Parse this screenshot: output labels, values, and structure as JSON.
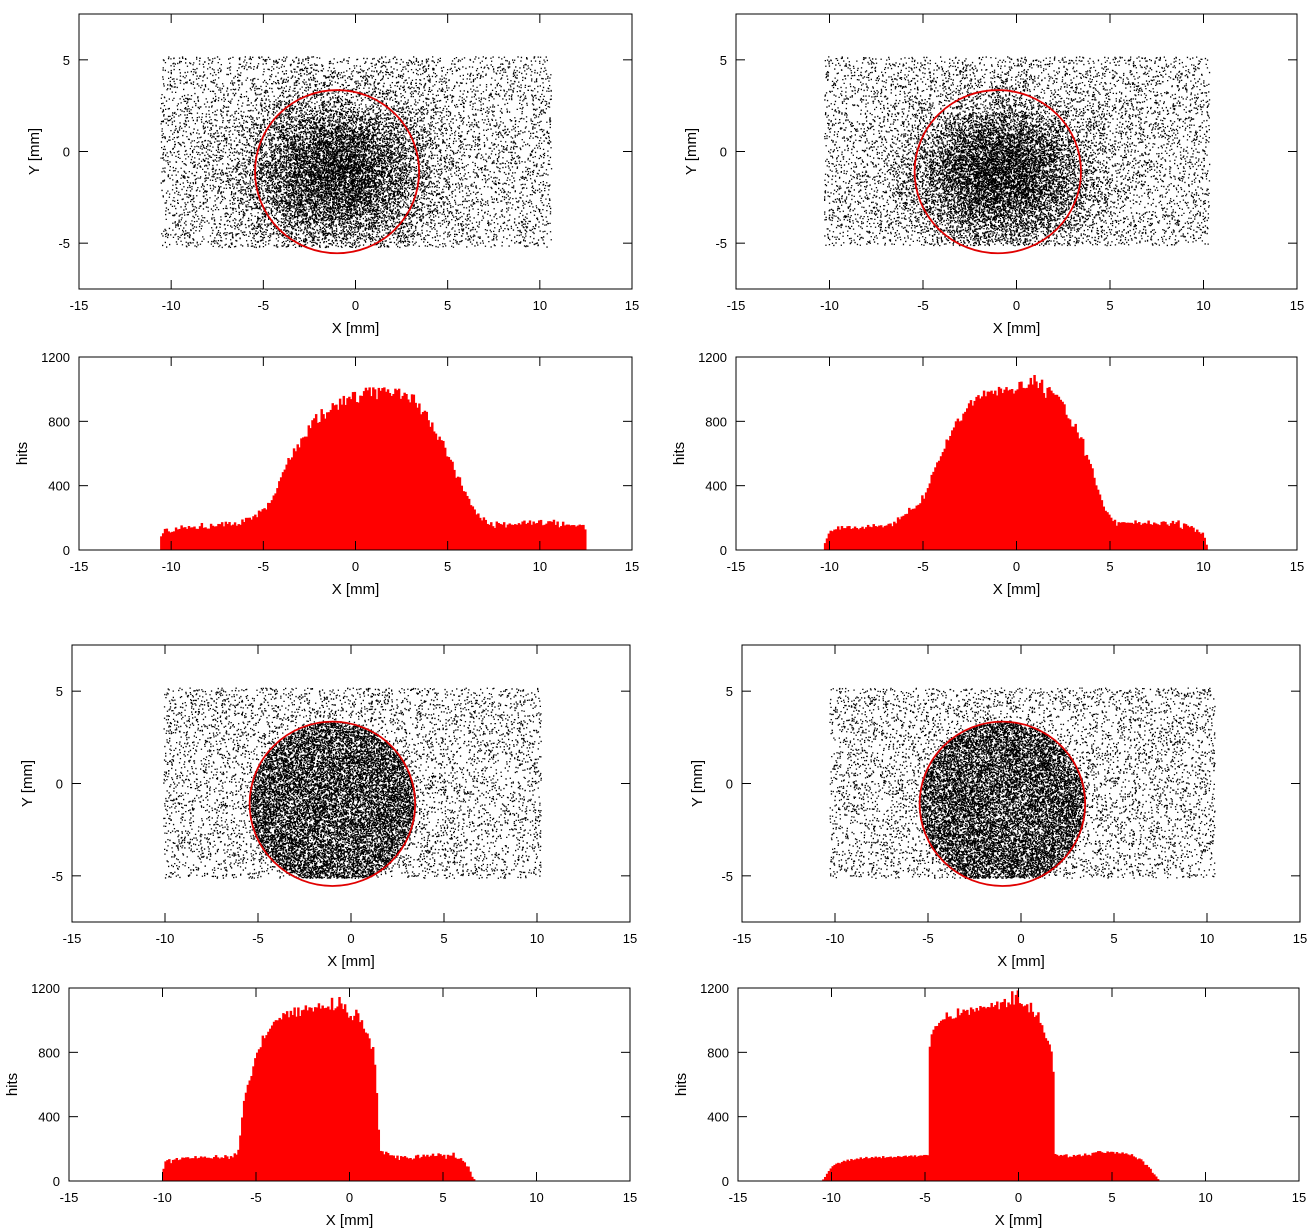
{
  "chart_data": [
    {
      "id": "scatter_top_left",
      "type": "scatter",
      "xlabel": "X [mm]",
      "ylabel": "Y [mm]",
      "xlim": [
        -15,
        15
      ],
      "ylim": [
        -7.5,
        7.5
      ],
      "xticks": [
        -15,
        -10,
        -5,
        0,
        5,
        10,
        15
      ],
      "yticks": [
        -5,
        0,
        5
      ],
      "grid": false,
      "point_color": "#000000",
      "uniform_region": {
        "x": [
          -10.6,
          10.6
        ],
        "y": [
          -5.2,
          5.2
        ],
        "points": 6000
      },
      "beam": {
        "cx": -1.0,
        "cy": -1.1,
        "rx": 5.3,
        "ry": 4.2,
        "points": 9000,
        "shape": "gaussian"
      },
      "circle": {
        "cx": -1.0,
        "cy": -1.1,
        "r": 4.45,
        "color": "#e00000"
      }
    },
    {
      "id": "hist_top_left",
      "type": "bar",
      "xlabel": "X [mm]",
      "ylabel": "hits",
      "xlim": [
        -15,
        15
      ],
      "ylim": [
        0,
        1200
      ],
      "xticks": [
        -15,
        -10,
        -5,
        0,
        5,
        10,
        15
      ],
      "yticks": [
        0,
        400,
        800,
        1200
      ],
      "bar_color": "#ff0000",
      "x_start": -10.6,
      "bin_width": 0.1,
      "counts": [
        85,
        104,
        131,
        133,
        116,
        109,
        113,
        116,
        140,
        128,
        131,
        153,
        140,
        142,
        131,
        149,
        140,
        141,
        146,
        132,
        131,
        148,
        168,
        138,
        141,
        133,
        133,
        163,
        151,
        146,
        148,
        162,
        161,
        173,
        147,
        176,
        162,
        174,
        153,
        158,
        172,
        151,
        161,
        157,
        190,
        174,
        200,
        200,
        201,
        189,
        210,
        220,
        204,
        245,
        239,
        254,
        260,
        252,
        293,
        292,
        310,
        339,
        352,
        385,
        428,
        452,
        484,
        500,
        531,
        572,
        562,
        576,
        632,
        614,
        657,
        638,
        694,
        700,
        705,
        705,
        775,
        758,
        807,
        819,
        845,
        790,
        796,
        876,
        845,
        817,
        856,
        857,
        871,
        913,
        900,
        904,
        872,
        941,
        904,
        958,
        902,
        944,
        953,
        938,
        982,
        983,
        920,
        917,
        960,
        958,
        988,
        1009,
        993,
        1011,
        957,
        1011,
        999,
        938,
        1008,
        990,
        1007,
        1011,
        984,
        999,
        976,
        958,
        970,
        1003,
        994,
        1003,
        940,
        958,
        978,
        970,
        936,
        918,
        968,
        966,
        915,
        885,
        911,
        844,
        858,
        866,
        859,
        807,
        766,
        793,
        737,
        724,
        685,
        705,
        683,
        678,
        636,
        582,
        578,
        561,
        549,
        498,
        449,
        456,
        452,
        400,
        366,
        362,
        336,
        318,
        279,
        271,
        252,
        221,
        227,
        200,
        184,
        203,
        187,
        162,
        157,
        173,
        148,
        137,
        177,
        168,
        162,
        158,
        173,
        140,
        158,
        165,
        158,
        156,
        161,
        157,
        167,
        159,
        177,
        183,
        162,
        169,
        184,
        157,
        177,
        165,
        168,
        184,
        187,
        154,
        157,
        164,
        179,
        179,
        175,
        188,
        156,
        177,
        141,
        149,
        176,
        153,
        158,
        158,
        153,
        155,
        155,
        146,
        152,
        158,
        155,
        156,
        128
      ]
    },
    {
      "id": "scatter_top_right",
      "type": "scatter",
      "xlabel": "X [mm]",
      "ylabel": "Y [mm]",
      "xlim": [
        -15,
        15
      ],
      "ylim": [
        -7.5,
        7.5
      ],
      "xticks": [
        -15,
        -10,
        -5,
        0,
        5,
        10,
        15
      ],
      "yticks": [
        -5,
        0,
        5
      ],
      "grid": false,
      "point_color": "#000000",
      "uniform_region": {
        "x": [
          -10.3,
          10.3
        ],
        "y": [
          -5.1,
          5.2
        ],
        "points": 6000
      },
      "beam": {
        "cx": -0.9,
        "cy": -1.2,
        "rx": 4.9,
        "ry": 4.0,
        "points": 9000,
        "shape": "gaussian"
      },
      "circle": {
        "cx": -1.0,
        "cy": -1.1,
        "r": 4.45,
        "color": "#e00000"
      }
    },
    {
      "id": "hist_top_right",
      "type": "bar",
      "xlabel": "X [mm]",
      "ylabel": "hits",
      "xlim": [
        -15,
        15
      ],
      "ylim": [
        0,
        1200
      ],
      "xticks": [
        -15,
        -10,
        -5,
        0,
        5,
        10,
        15
      ],
      "yticks": [
        0,
        400,
        800,
        1200
      ],
      "bar_color": "#ff0000",
      "x_start": -10.3,
      "bin_width": 0.1,
      "counts": [
        43,
        72,
        102,
        120,
        117,
        127,
        129,
        147,
        127,
        149,
        136,
        136,
        148,
        149,
        131,
        135,
        146,
        137,
        129,
        137,
        145,
        132,
        142,
        156,
        145,
        142,
        161,
        149,
        145,
        152,
        154,
        141,
        150,
        153,
        163,
        165,
        148,
        176,
        166,
        203,
        191,
        208,
        213,
        223,
        225,
        262,
        251,
        256,
        258,
        276,
        281,
        291,
        340,
        319,
        358,
        385,
        414,
        467,
        486,
        514,
        545,
        555,
        583,
        609,
        630,
        687,
        682,
        709,
        744,
        762,
        800,
        817,
        800,
        805,
        848,
        859,
        881,
        912,
        932,
        898,
        927,
        952,
        963,
        942,
        955,
        991,
        956,
        985,
        984,
        991,
        971,
        991,
        961,
        1014,
        1004,
        976,
        997,
        1013,
        992,
        997,
        1001,
        973,
        991,
        999,
        1045,
        1047,
        1008,
        1006,
        1008,
        1029,
        1070,
        1029,
        1088,
        1048,
        1007,
        1039,
        1059,
        976,
        946,
        1008,
        1013,
        991,
        975,
        965,
        965,
        953,
        934,
        922,
        906,
        841,
        819,
        812,
        768,
        767,
        784,
        731,
        694,
        701,
        691,
        586,
        591,
        562,
        535,
        508,
        449,
        402,
        375,
        345,
        310,
        270,
        244,
        235,
        220,
        201,
        180,
        188,
        151,
        173,
        170,
        173,
        173,
        169,
        170,
        169,
        169,
        163,
        184,
        167,
        174,
        156,
        165,
        169,
        164,
        183,
        161,
        157,
        171,
        165,
        160,
        155,
        175,
        178,
        175,
        159,
        150,
        167,
        181,
        162,
        173,
        184,
        139,
        131,
        165,
        161,
        151,
        142,
        149,
        139,
        113,
        127,
        111,
        101,
        108,
        76,
        33
      ]
    },
    {
      "id": "scatter_bottom_left",
      "type": "scatter",
      "xlabel": "X [mm]",
      "ylabel": "Y [mm]",
      "xlim": [
        -15,
        15
      ],
      "ylim": [
        -7.5,
        7.5
      ],
      "xticks": [
        -15,
        -10,
        -5,
        0,
        5,
        10,
        15
      ],
      "yticks": [
        -5,
        0,
        5
      ],
      "grid": false,
      "point_color": "#000000",
      "uniform_region": {
        "x": [
          -10.1,
          10.2
        ],
        "y": [
          -5.1,
          5.2
        ],
        "points": 6000
      },
      "beam": {
        "cx": -1.0,
        "cy": -1.1,
        "rx": 4.45,
        "ry": 4.45,
        "points": 11000,
        "shape": "disc"
      },
      "circle": {
        "cx": -1.0,
        "cy": -1.1,
        "r": 4.45,
        "color": "#e00000"
      }
    },
    {
      "id": "hist_bottom_left",
      "type": "bar",
      "xlabel": "X [mm]",
      "ylabel": "hits",
      "xlim": [
        -15,
        15
      ],
      "ylim": [
        0,
        1200
      ],
      "xticks": [
        -15,
        -10,
        -5,
        0,
        5,
        10,
        15
      ],
      "yticks": [
        0,
        400,
        800,
        1200
      ],
      "bar_color": "#ff0000",
      "x_start": -10.0,
      "bin_width": 0.1,
      "counts": [
        76,
        122,
        130,
        136,
        111,
        131,
        134,
        143,
        130,
        134,
        146,
        144,
        147,
        148,
        140,
        142,
        142,
        155,
        141,
        144,
        153,
        147,
        152,
        144,
        145,
        142,
        140,
        149,
        161,
        147,
        140,
        147,
        143,
        161,
        153,
        137,
        155,
        147,
        172,
        164,
        194,
        283,
        395,
        498,
        549,
        598,
        625,
        653,
        713,
        764,
        798,
        819,
        832,
        904,
        888,
        907,
        928,
        947,
        967,
        990,
        1000,
        999,
        1014,
        1005,
        1044,
        1037,
        1056,
        1018,
        1058,
        1032,
        1079,
        1022,
        1079,
        1026,
        1062,
        1065,
        1092,
        1061,
        1080,
        1077,
        1054,
        1081,
        1079,
        1105,
        1072,
        1091,
        1075,
        1077,
        1085,
        1066,
        1139,
        1062,
        1074,
        1085,
        1144,
        1104,
        1069,
        1099,
        1048,
        1016,
        1026,
        1000,
        1027,
        1065,
        1043,
        988,
        1000,
        947,
        923,
        917,
        887,
        822,
        833,
        723,
        547,
        319,
        187,
        185,
        166,
        182,
        174,
        160,
        160,
        158,
        142,
        158,
        131,
        155,
        149,
        155,
        146,
        140,
        143,
        134,
        140,
        159,
        163,
        142,
        150,
        164,
        153,
        163,
        151,
        158,
        170,
        155,
        156,
        172,
        167,
        157,
        163,
        138,
        163,
        158,
        158,
        176,
        145,
        138,
        138,
        142,
        125,
        116,
        91,
        90,
        58,
        26,
        12
      ]
    },
    {
      "id": "scatter_bottom_right",
      "type": "scatter",
      "xlabel": "X [mm]",
      "ylabel": "Y [mm]",
      "xlim": [
        -15,
        15
      ],
      "ylim": [
        -7.5,
        7.5
      ],
      "xticks": [
        -15,
        -10,
        -5,
        0,
        5,
        10,
        15
      ],
      "yticks": [
        -5,
        0,
        5
      ],
      "grid": false,
      "point_color": "#000000",
      "uniform_region": {
        "x": [
          -10.3,
          10.4
        ],
        "y": [
          -5.1,
          5.2
        ],
        "points": 6000
      },
      "beam": {
        "cx": -1.0,
        "cy": -1.1,
        "rx": 4.45,
        "ry": 4.45,
        "points": 11000,
        "shape": "disc"
      },
      "circle": {
        "cx": -1.0,
        "cy": -1.1,
        "r": 4.45,
        "color": "#e00000"
      }
    },
    {
      "id": "hist_bottom_right",
      "type": "bar",
      "xlabel": "X [mm]",
      "ylabel": "hits",
      "xlim": [
        -15,
        15
      ],
      "ylim": [
        0,
        1200
      ],
      "xticks": [
        -15,
        -10,
        -5,
        0,
        5,
        10,
        15
      ],
      "yticks": [
        0,
        400,
        800,
        1200
      ],
      "bar_color": "#ff0000",
      "x_start": -10.5,
      "bin_width": 0.1,
      "counts": [
        10,
        25,
        45,
        62,
        78,
        92,
        100,
        108,
        113,
        110,
        118,
        126,
        122,
        133,
        125,
        137,
        130,
        134,
        140,
        136,
        147,
        138,
        143,
        150,
        141,
        142,
        149,
        144,
        152,
        146,
        150,
        142,
        155,
        144,
        148,
        149,
        152,
        145,
        150,
        148,
        155,
        152,
        149,
        155,
        158,
        150,
        156,
        159,
        152,
        160,
        150,
        156,
        159,
        158,
        162,
        162,
        160,
        835,
        912,
        941,
        963,
        964,
        983,
        996,
        1004,
        1006,
        1048,
        1021,
        1024,
        1009,
        1011,
        1016,
        1073,
        1031,
        1045,
        1066,
        1058,
        1064,
        1033,
        1079,
        1068,
        1053,
        1076,
        1060,
        1088,
        1080,
        1083,
        1074,
        1082,
        1080,
        1107,
        1083,
        1094,
        1116,
        1068,
        1110,
        1113,
        1132,
        1081,
        1110,
        1098,
        1180,
        1097,
        1157,
        1185,
        1106,
        1101,
        1086,
        1091,
        1099,
        1049,
        1108,
        1052,
        1020,
        1030,
        1049,
        983,
        969,
        923,
        888,
        872,
        849,
        805,
        679,
        168,
        163,
        155,
        162,
        158,
        163,
        166,
        147,
        152,
        150,
        162,
        155,
        162,
        165,
        154,
        158,
        171,
        160,
        163,
        158,
        175,
        177,
        179,
        186,
        186,
        179,
        175,
        174,
        184,
        179,
        182,
        181,
        170,
        180,
        172,
        171,
        178,
        169,
        172,
        165,
        160,
        167,
        153,
        147,
        135,
        140,
        135,
        122,
        100,
        100,
        86,
        76,
        51,
        41,
        28,
        12
      ]
    }
  ]
}
